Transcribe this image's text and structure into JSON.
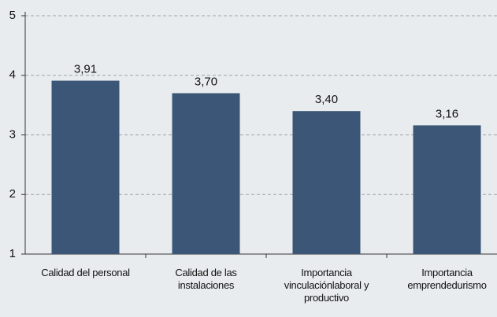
{
  "chart_data": {
    "type": "bar",
    "categories": [
      "Calidad del personal",
      "Calidad de las instalaciones",
      "Importancia vinculaciónlaboral y productivo",
      "Importancia emprendedurismo"
    ],
    "values": [
      3.91,
      3.7,
      3.4,
      3.16
    ],
    "value_labels": [
      "3,91",
      "3,70",
      "3,40",
      "3,16"
    ],
    "color": "#3b5677",
    "ylim": [
      1,
      5
    ],
    "yticks": [
      1,
      2,
      3,
      4,
      5
    ],
    "grid": true
  }
}
